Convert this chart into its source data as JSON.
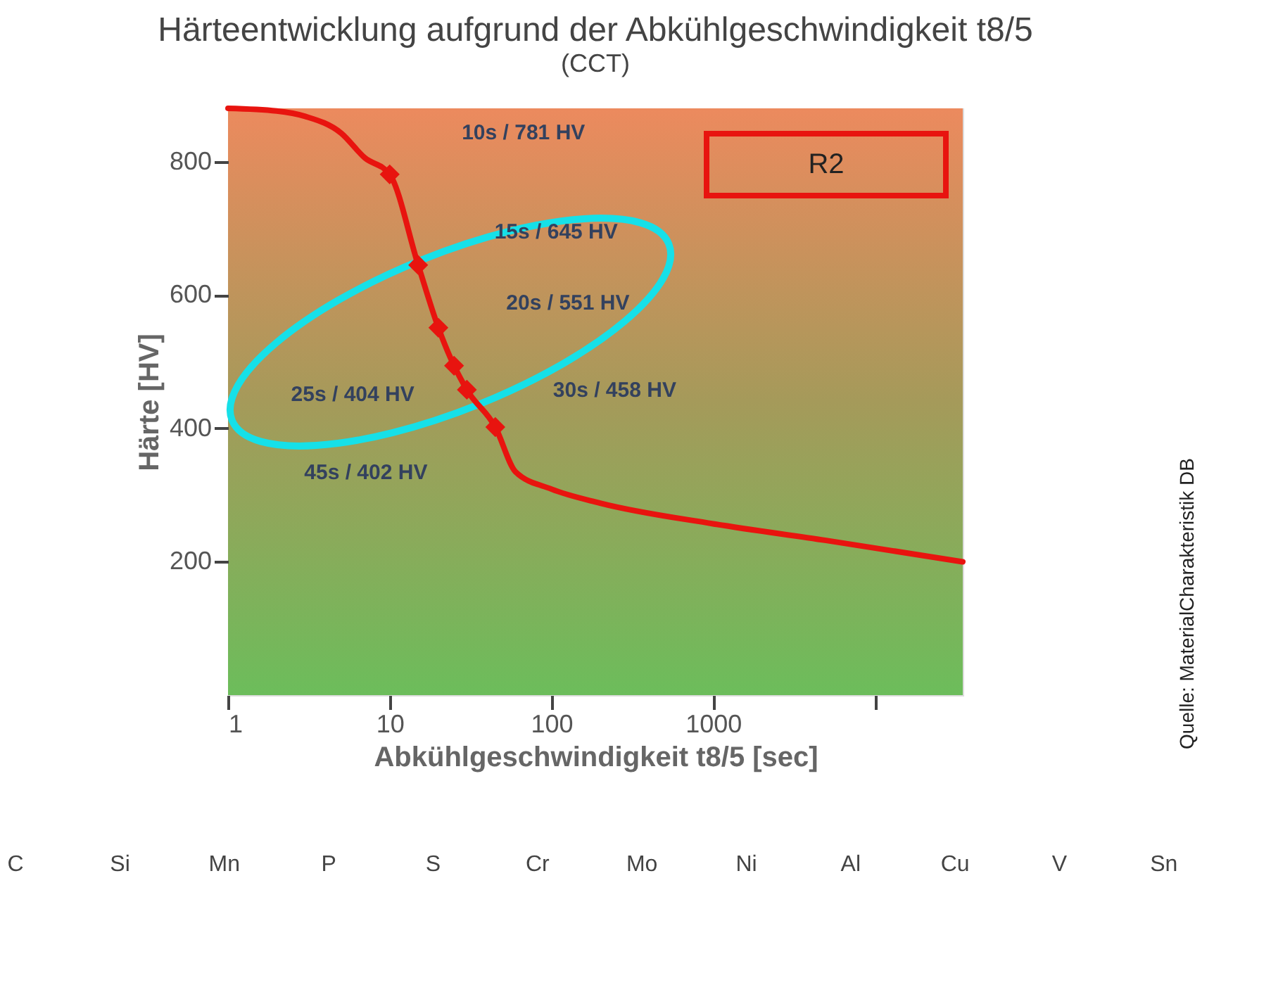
{
  "chart_data": {
    "type": "line",
    "title": "Härteentwicklung aufgrund der Abkühlgeschwindigkeit t8/5",
    "subtitle": "(CCT)",
    "xlabel": "Abkühlgeschwindigkeit t8/5 [sec]",
    "ylabel": "Härte [HV]",
    "log": "x",
    "xlim": [
      1,
      35000
    ],
    "ylim": [
      0,
      880
    ],
    "xticks": [
      1,
      10,
      100,
      1000,
      {
        "value": 10000,
        "label": null
      }
    ],
    "yticks": [
      200,
      400,
      600,
      800
    ],
    "grid": false,
    "series": [
      {
        "color": "#e8140f",
        "marker": "none",
        "x": [
          1,
          2,
          3,
          5,
          7,
          10,
          15,
          20,
          25,
          30,
          45,
          60,
          100,
          200,
          1000,
          5000,
          35000
        ],
        "values": [
          880,
          876,
          868,
          843,
          806,
          781,
          645,
          551,
          494,
          458,
          402,
          335,
          309,
          288,
          257,
          232,
          200
        ]
      },
      {
        "type": "scatter",
        "color": "#e8140f",
        "marker": "diamond",
        "x": [
          10,
          15,
          20,
          25,
          30,
          45
        ],
        "values": [
          781,
          645,
          551,
          494,
          458,
          402
        ]
      }
    ],
    "annotations": [
      "10s / 781 HV",
      "15s / 645 HV",
      "20s / 551 HV",
      "25s / 404 HV",
      "30s / 458 HV",
      "45s / 402 HV",
      "R2",
      "Quelle: MaterialCharakteristik DB",
      "C",
      "Si",
      "Mn",
      "P",
      "S",
      "Cr",
      "Mo",
      "Ni",
      "Al",
      "Cu",
      "V",
      "Sn"
    ]
  }
}
